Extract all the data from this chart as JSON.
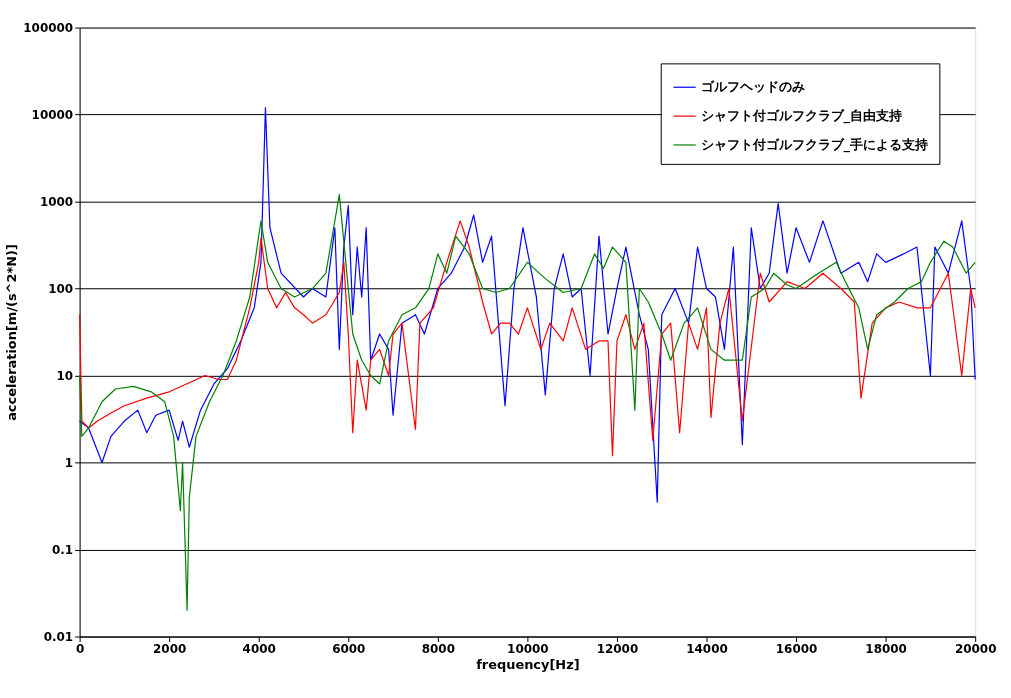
{
  "chart_data": {
    "type": "line",
    "xlabel": "frequency[Hz]",
    "ylabel": "acceleration[m/(s^2*N)]",
    "xlim": [
      0,
      20000
    ],
    "xticks": [
      0,
      2000,
      4000,
      6000,
      8000,
      10000,
      12000,
      14000,
      16000,
      18000,
      20000
    ],
    "ylim": [
      0.01,
      100000
    ],
    "yticks": [
      0.01,
      0.1,
      1,
      10,
      100,
      1000,
      10000,
      100000
    ],
    "log": "y",
    "grid": "y",
    "legend": "top right",
    "marker": "none",
    "line_style": "solid",
    "series": [
      {
        "name": "ゴルフヘッドのみ",
        "color": "#0000ff",
        "x": [
          0,
          200,
          500,
          700,
          1000,
          1300,
          1500,
          1700,
          2000,
          2200,
          2300,
          2450,
          2700,
          3000,
          3300,
          3600,
          3900,
          4050,
          4150,
          4250,
          4500,
          5000,
          5200,
          5500,
          5700,
          5800,
          5900,
          6000,
          6100,
          6200,
          6300,
          6400,
          6500,
          6700,
          6900,
          7000,
          7200,
          7500,
          7700,
          8000,
          8300,
          8600,
          8800,
          9000,
          9200,
          9400,
          9500,
          9700,
          9900,
          10200,
          10400,
          10600,
          10800,
          11000,
          11200,
          11400,
          11600,
          11800,
          12000,
          12200,
          12500,
          12700,
          12900,
          13000,
          13300,
          13600,
          13800,
          14000,
          14200,
          14400,
          14600,
          14800,
          15000,
          15200,
          15400,
          15600,
          15800,
          16000,
          16300,
          16600,
          17000,
          17400,
          17600,
          17800,
          18000,
          18400,
          18700,
          19000,
          19100,
          19400,
          19700,
          19900,
          20000
        ],
        "values": [
          3,
          2.5,
          1,
          2,
          3,
          4,
          2.2,
          3.5,
          4,
          1.8,
          3,
          1.5,
          4,
          8,
          12,
          25,
          60,
          200,
          12000,
          500,
          150,
          80,
          100,
          80,
          500,
          20,
          300,
          900,
          50,
          300,
          80,
          500,
          15,
          30,
          20,
          3.5,
          40,
          50,
          30,
          100,
          150,
          300,
          700,
          200,
          400,
          20,
          4.5,
          100,
          500,
          80,
          6,
          100,
          250,
          80,
          100,
          10,
          400,
          30,
          100,
          300,
          50,
          20,
          0.35,
          50,
          100,
          40,
          300,
          100,
          80,
          20,
          300,
          1.6,
          500,
          100,
          150,
          950,
          150,
          500,
          200,
          600,
          150,
          200,
          120,
          250,
          200,
          250,
          300,
          10,
          300,
          150,
          600,
          100,
          9
        ]
      },
      {
        "name": "シャフト付ゴルフクラブ_自由支持",
        "color": "#ff0000",
        "x": [
          0,
          50,
          200,
          400,
          700,
          1000,
          1500,
          2000,
          2500,
          2800,
          3100,
          3300,
          3500,
          3800,
          4000,
          4050,
          4200,
          4400,
          4600,
          4800,
          5000,
          5200,
          5500,
          5800,
          5900,
          6000,
          6100,
          6200,
          6400,
          6500,
          6700,
          6900,
          7000,
          7200,
          7500,
          7600,
          7900,
          8200,
          8500,
          8700,
          9000,
          9200,
          9400,
          9600,
          9800,
          10000,
          10300,
          10500,
          10800,
          11000,
          11300,
          11600,
          11800,
          11900,
          12000,
          12200,
          12400,
          12600,
          12800,
          13000,
          13200,
          13400,
          13600,
          13800,
          14000,
          14100,
          14300,
          14500,
          14800,
          15200,
          15400,
          15800,
          16200,
          16600,
          17000,
          17300,
          17450,
          17700,
          18000,
          18300,
          18700,
          19000,
          19400,
          19700,
          19900,
          20000
        ],
        "values": [
          50,
          3,
          2.5,
          3,
          3.7,
          4.5,
          5.5,
          6.5,
          8.5,
          10,
          9,
          9,
          15,
          60,
          200,
          380,
          100,
          60,
          90,
          60,
          50,
          40,
          50,
          90,
          200,
          30,
          2.2,
          15,
          4,
          15,
          20,
          10,
          30,
          40,
          2.4,
          40,
          60,
          200,
          600,
          300,
          70,
          30,
          40,
          40,
          30,
          60,
          20,
          40,
          25,
          60,
          20,
          25,
          25,
          1.2,
          25,
          50,
          20,
          40,
          1.8,
          30,
          40,
          2.2,
          40,
          20,
          60,
          3.3,
          40,
          100,
          3,
          150,
          70,
          120,
          100,
          150,
          100,
          70,
          5.5,
          40,
          60,
          70,
          60,
          60,
          150,
          10,
          100,
          60
        ]
      },
      {
        "name": "シャフト付ゴルフクラブ_手による支持",
        "color": "#008000",
        "x": [
          0,
          50,
          200,
          500,
          800,
          1200,
          1600,
          1900,
          2100,
          2250,
          2300,
          2400,
          2450,
          2600,
          2900,
          3200,
          3500,
          3800,
          4050,
          4200,
          4500,
          4800,
          5200,
          5500,
          5800,
          6000,
          6100,
          6300,
          6500,
          6700,
          6900,
          7200,
          7500,
          7800,
          8000,
          8200,
          8400,
          8700,
          9000,
          9300,
          9600,
          10000,
          10400,
          10800,
          11200,
          11500,
          11700,
          11900,
          12200,
          12400,
          12500,
          12700,
          13000,
          13200,
          13500,
          13800,
          14100,
          14400,
          14800,
          15000,
          15300,
          15500,
          15800,
          16000,
          16500,
          16900,
          17100,
          17400,
          17600,
          17800,
          18200,
          18500,
          18800,
          19000,
          19300,
          19500,
          19800,
          20000
        ],
        "values": [
          10,
          2,
          2.5,
          5,
          7,
          7.5,
          6.5,
          5,
          2,
          0.28,
          1,
          0.02,
          0.4,
          2,
          5,
          10,
          25,
          80,
          600,
          200,
          100,
          80,
          100,
          150,
          1200,
          100,
          30,
          15,
          10,
          8,
          25,
          50,
          60,
          100,
          250,
          150,
          400,
          250,
          100,
          90,
          100,
          200,
          130,
          90,
          100,
          250,
          170,
          300,
          200,
          4,
          100,
          70,
          30,
          15,
          40,
          60,
          20,
          15,
          15,
          80,
          100,
          150,
          110,
          100,
          150,
          200,
          120,
          60,
          20,
          50,
          70,
          100,
          120,
          200,
          350,
          300,
          150,
          200
        ]
      }
    ]
  }
}
